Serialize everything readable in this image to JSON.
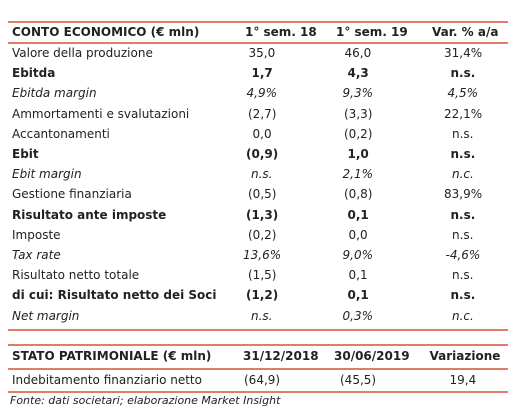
{
  "income_table": {
    "header": [
      "CONTO ECONOMICO (€ mln)",
      "1° sem. 18",
      "1° sem. 19",
      "Var. % a/a"
    ],
    "rows": [
      {
        "cells": [
          "Valore della produzione",
          "35,0",
          "46,0",
          "31,4%"
        ],
        "style": "normal"
      },
      {
        "cells": [
          "Ebitda",
          "1,7",
          "4,3",
          "n.s."
        ],
        "style": "bold"
      },
      {
        "cells": [
          "Ebitda margin",
          "4,9%",
          "9,3%",
          "4,5%"
        ],
        "style": "italic"
      },
      {
        "cells": [
          "Ammortamenti e svalutazioni",
          "(2,7)",
          "(3,3)",
          "22,1%"
        ],
        "style": "normal"
      },
      {
        "cells": [
          "Accantonamenti",
          "0,0",
          "(0,2)",
          "n.s."
        ],
        "style": "normal"
      },
      {
        "cells": [
          "Ebit",
          "(0,9)",
          "1,0",
          "n.s."
        ],
        "style": "bold"
      },
      {
        "cells": [
          "Ebit margin",
          "n.s.",
          "2,1%",
          "n.c."
        ],
        "style": "italic"
      },
      {
        "cells": [
          "Gestione finanziaria",
          "(0,5)",
          "(0,8)",
          "83,9%"
        ],
        "style": "normal"
      },
      {
        "cells": [
          "Risultato ante imposte",
          "(1,3)",
          "0,1",
          "n.s."
        ],
        "style": "bold"
      },
      {
        "cells": [
          "Imposte",
          "(0,2)",
          "0,0",
          "n.s."
        ],
        "style": "normal"
      },
      {
        "cells": [
          "Tax rate",
          "13,6%",
          "9,0%",
          "-4,6%"
        ],
        "style": "italic"
      },
      {
        "cells": [
          "Risultato netto totale",
          "(1,5)",
          "0,1",
          "n.s."
        ],
        "style": "normal"
      },
      {
        "cells": [
          "di cui: Risultato netto dei Soci",
          "(1,2)",
          "0,1",
          "n.s."
        ],
        "style": "bold"
      },
      {
        "cells": [
          "Net margin",
          "n.s.",
          "0,3%",
          "n.c."
        ],
        "style": "italic"
      }
    ]
  },
  "balance_table": {
    "header": [
      "STATO PATRIMONIALE (€ mln)",
      "31/12/2018",
      "30/06/2019",
      "Variazione"
    ],
    "rows": [
      {
        "cells": [
          "Indebitamento finanziario netto",
          "(64,9)",
          "(45,5)",
          "19,4"
        ],
        "style": "normal"
      }
    ]
  },
  "footnote": "Fonte: dati societari; elaborazione Market Insight"
}
